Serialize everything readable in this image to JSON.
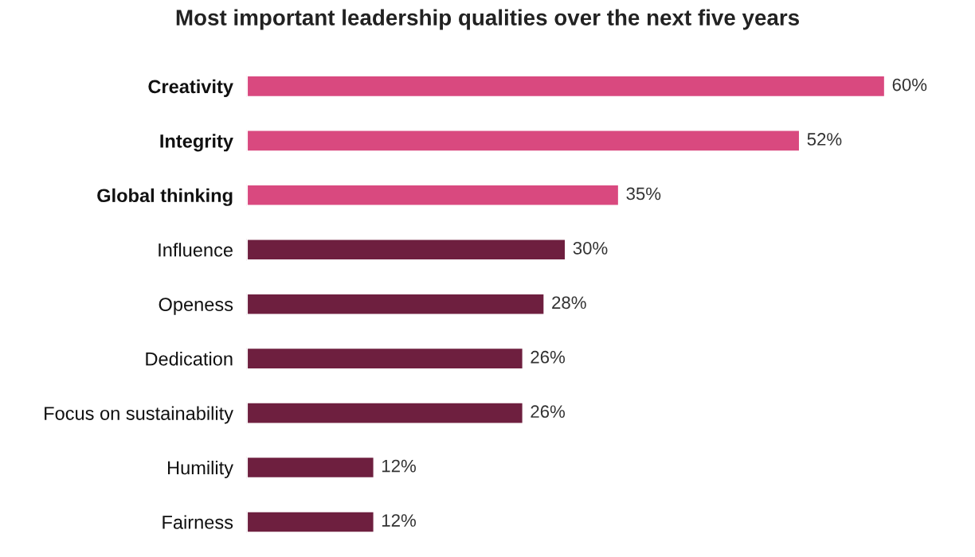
{
  "chart_data": {
    "type": "bar",
    "orientation": "horizontal",
    "title": "Most important leadership qualities over the next five years",
    "categories": [
      "Creativity",
      "Integrity",
      "Global thinking",
      "Influence",
      "Openess",
      "Dedication",
      "Focus on sustainability",
      "Humility",
      "Fairness"
    ],
    "values": [
      60,
      52,
      35,
      30,
      28,
      26,
      26,
      12,
      12
    ],
    "colors": [
      "#d9497f",
      "#d9497f",
      "#d9497f",
      "#6e1f3f",
      "#6e1f3f",
      "#6e1f3f",
      "#6e1f3f",
      "#6e1f3f",
      "#6e1f3f"
    ],
    "value_labels": [
      "60%",
      "52%",
      "35%",
      "30%",
      "28%",
      "26%",
      "26%",
      "12%",
      "12%"
    ],
    "grid": false,
    "legend": false
  }
}
